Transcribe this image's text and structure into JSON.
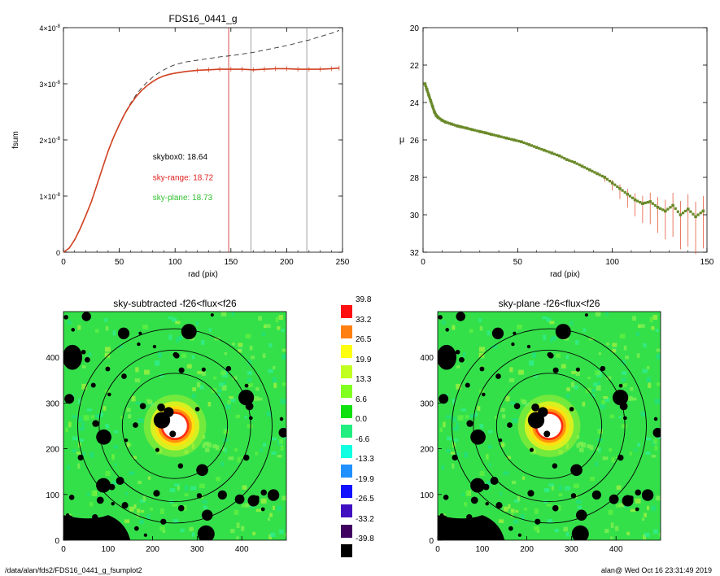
{
  "footer": {
    "path": "/data/alan/fds2/FDS16_0441_g_fsumplot2",
    "timestamp": "alan@  Wed Oct 16 23:31:49 2019"
  },
  "chart_data": [
    {
      "type": "line",
      "title": "FDS16_0441_g",
      "xlabel": "rad (pix)",
      "ylabel": "fsum",
      "xlim": [
        0,
        250
      ],
      "ylim": [
        0,
        4e-08
      ],
      "x_ticks": [
        "0",
        "50",
        "100",
        "150",
        "200",
        "250"
      ],
      "y_ticks": [
        {
          "base": "0",
          "exp": ""
        },
        {
          "base": "1×10",
          "exp": "-8"
        },
        {
          "base": "2×10",
          "exp": "-8"
        },
        {
          "base": "3×10",
          "exp": "-8"
        },
        {
          "base": "4×10",
          "exp": "-8"
        }
      ],
      "vlines": [
        {
          "x": 148,
          "color": "#d02020"
        },
        {
          "x": 168,
          "color": "#888888"
        },
        {
          "x": 218,
          "color": "#888888"
        }
      ],
      "annotations": [
        {
          "text": "skybox0: 18.64",
          "color": "#000000",
          "x": 80,
          "y": 1.65e-08
        },
        {
          "text": "sky-range: 18.72",
          "color": "#e02020",
          "x": 80,
          "y": 1.28e-08
        },
        {
          "text": "sky-plane: 18.73",
          "color": "#30c030",
          "x": 80,
          "y": 9.3e-09
        }
      ],
      "series": [
        {
          "style": "dashed",
          "color": "#333333",
          "x": [
            0,
            5,
            10,
            15,
            20,
            25,
            30,
            35,
            40,
            45,
            50,
            55,
            60,
            65,
            70,
            75,
            80,
            85,
            90,
            95,
            100,
            110,
            120,
            130,
            140,
            150,
            160,
            170,
            180,
            190,
            200,
            210,
            220,
            230,
            240,
            247
          ],
          "y": [
            0,
            7e-10,
            2.2e-09,
            4.2e-09,
            6.5e-09,
            9e-09,
            1.2e-08,
            1.5e-08,
            1.8e-08,
            2.05e-08,
            2.28e-08,
            2.48e-08,
            2.65e-08,
            2.8e-08,
            2.93e-08,
            3.03e-08,
            3.12e-08,
            3.19e-08,
            3.25e-08,
            3.3e-08,
            3.34e-08,
            3.39e-08,
            3.42e-08,
            3.45e-08,
            3.48e-08,
            3.5e-08,
            3.53e-08,
            3.56e-08,
            3.6e-08,
            3.64e-08,
            3.68e-08,
            3.73e-08,
            3.78e-08,
            3.84e-08,
            3.9e-08,
            3.95e-08
          ]
        },
        {
          "style": "solid",
          "color": "#d04020",
          "x": [
            0,
            5,
            10,
            15,
            20,
            25,
            30,
            35,
            40,
            45,
            50,
            55,
            60,
            65,
            70,
            75,
            80,
            85,
            90,
            95,
            100,
            110,
            120,
            130,
            140,
            150,
            160,
            170,
            180,
            190,
            200,
            210,
            220,
            230,
            240,
            247
          ],
          "y": [
            0,
            7e-10,
            2.2e-09,
            4.2e-09,
            6.5e-09,
            9e-09,
            1.2e-08,
            1.5e-08,
            1.8e-08,
            2.05e-08,
            2.27e-08,
            2.47e-08,
            2.63e-08,
            2.77e-08,
            2.88e-08,
            2.97e-08,
            3.04e-08,
            3.1e-08,
            3.14e-08,
            3.17e-08,
            3.19e-08,
            3.22e-08,
            3.24e-08,
            3.25e-08,
            3.26e-08,
            3.26e-08,
            3.26e-08,
            3.25e-08,
            3.26e-08,
            3.27e-08,
            3.27e-08,
            3.26e-08,
            3.26e-08,
            3.26e-08,
            3.27e-08,
            3.28e-08
          ]
        }
      ]
    },
    {
      "type": "scatter",
      "xlabel": "rad (pix)",
      "ylabel": "μ",
      "xlim": [
        0,
        150
      ],
      "ylim": [
        32,
        20
      ],
      "x_ticks": [
        "0",
        "50",
        "100",
        "150"
      ],
      "y_ticks": [
        "20",
        "22",
        "24",
        "26",
        "28",
        "30",
        "32"
      ],
      "series": [
        {
          "name": "",
          "color": "#6a8a2a",
          "x": [
            1,
            2,
            3,
            4,
            5,
            6,
            7,
            8,
            10,
            12,
            15,
            18,
            20,
            23,
            26,
            30,
            33,
            36,
            40,
            44,
            48,
            52,
            56,
            60,
            64,
            68,
            72,
            76,
            80,
            84,
            88,
            92,
            96,
            100,
            104,
            108,
            112,
            116,
            120,
            124,
            128,
            132,
            136,
            140,
            144,
            148
          ],
          "y": [
            23,
            23.3,
            23.6,
            23.9,
            24.2,
            24.5,
            24.7,
            24.8,
            24.95,
            25.05,
            25.15,
            25.25,
            25.3,
            25.37,
            25.45,
            25.55,
            25.62,
            25.7,
            25.8,
            25.9,
            26,
            26.1,
            26.25,
            26.4,
            26.55,
            26.7,
            26.85,
            27.05,
            27.2,
            27.4,
            27.6,
            27.8,
            28,
            28.3,
            28.6,
            28.9,
            29.2,
            29.4,
            29.3,
            29.6,
            29.8,
            29.5,
            30.0,
            29.7,
            30.1,
            29.8
          ]
        }
      ]
    },
    {
      "type": "heatmap",
      "title": "sky-subtracted -f26<flux<f26",
      "xlim": [
        0,
        500
      ],
      "ylim": [
        0,
        500
      ],
      "x_ticks": [
        "0",
        "100",
        "200",
        "300",
        "400"
      ],
      "y_ticks": [
        "0",
        "100",
        "200",
        "300",
        "400"
      ],
      "center": [
        250,
        250
      ],
      "circles_radius": [
        118,
        170,
        218
      ]
    },
    {
      "type": "heatmap",
      "title": "sky-plane -f26<flux<f26",
      "xlim": [
        0,
        500
      ],
      "ylim": [
        0,
        500
      ],
      "x_ticks": [
        "0",
        "100",
        "200",
        "300",
        "400"
      ],
      "y_ticks": [
        "0",
        "100",
        "200",
        "300",
        "400"
      ],
      "center": [
        250,
        250
      ],
      "circles_radius": [
        118,
        170,
        218
      ]
    }
  ],
  "colorbar": {
    "levels": [
      {
        "label": "39.8",
        "color": "#ff1010"
      },
      {
        "label": "33.2",
        "color": "#ff8010"
      },
      {
        "label": "26.5",
        "color": "#ffff10"
      },
      {
        "label": "19.9",
        "color": "#c0ff20"
      },
      {
        "label": "13.3",
        "color": "#80ff20"
      },
      {
        "label": "6.6",
        "color": "#10e010"
      },
      {
        "label": "0.0",
        "color": "#20ee80"
      },
      {
        "label": "-6.6",
        "color": "#10ffe0"
      },
      {
        "label": "-13.3",
        "color": "#2090ff"
      },
      {
        "label": "-19.9",
        "color": "#1010ff"
      },
      {
        "label": "-26.5",
        "color": "#4010c0"
      },
      {
        "label": "-33.2",
        "color": "#400060"
      },
      {
        "label": "-39.8",
        "color": "#000000"
      }
    ]
  }
}
